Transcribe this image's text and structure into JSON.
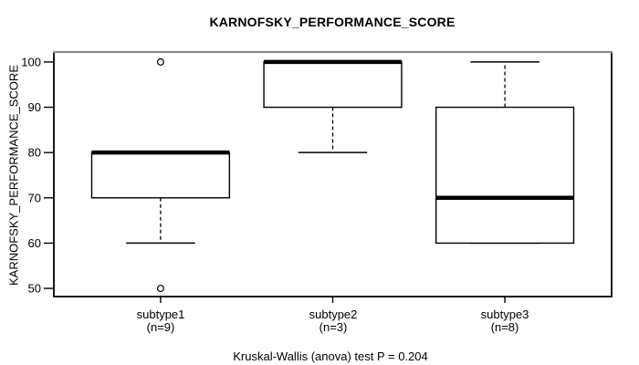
{
  "chart_data": {
    "type": "boxplot",
    "title": "KARNOFSKY_PERFORMANCE_SCORE",
    "ylabel": "KARNOFSKY_PERFORMANCE_SCORE",
    "xlabel": "",
    "footnote": "Kruskal-Wallis (anova) test P = 0.204",
    "ylim": [
      48.2,
      102.2
    ],
    "yticks": [
      50,
      60,
      70,
      80,
      90,
      100
    ],
    "grid": false,
    "legend": "none",
    "groups": [
      {
        "label": "subtype1",
        "n_label": "(n=9)",
        "n": 9,
        "q1": 70,
        "median": 80,
        "q3": 80,
        "whisker_low": 60,
        "whisker_high": 80,
        "outliers": [
          100,
          50
        ]
      },
      {
        "label": "subtype2",
        "n_label": "(n=3)",
        "n": 3,
        "q1": 90,
        "median": 100,
        "q3": 100,
        "whisker_low": 80,
        "whisker_high": 100,
        "outliers": []
      },
      {
        "label": "subtype3",
        "n_label": "(n=8)",
        "n": 8,
        "q1": 60,
        "median": 70,
        "q3": 90,
        "whisker_low": 60,
        "whisker_high": 100,
        "outliers": []
      }
    ],
    "colors": {
      "line": "#000000",
      "background": "#ffffff",
      "border_top": "#8c8c8c",
      "box_fill": "#ffffff"
    }
  }
}
